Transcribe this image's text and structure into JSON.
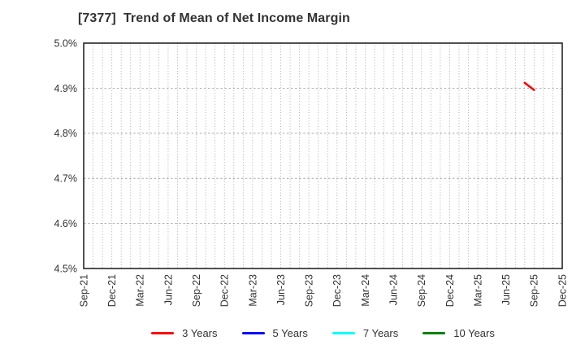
{
  "title": "[7377]  Trend of Mean of Net Income Margin",
  "colors": {
    "background": "#ffffff",
    "axis": "#262626",
    "grid": "#999999",
    "text": "#333333",
    "series_3y": "#ff0000",
    "series_5y": "#0000ff",
    "series_7y": "#00ffff",
    "series_10y": "#008000"
  },
  "chart_data": {
    "type": "line",
    "title": "[7377]  Trend of Mean of Net Income Margin",
    "xlabel": "",
    "ylabel": "",
    "x_unit": "month",
    "x_start": "Sep-21",
    "x_end": "Dec-25",
    "x_tick_every_months": 3,
    "x_tick_labels": [
      "Sep-21",
      "Dec-21",
      "Mar-22",
      "Jun-22",
      "Sep-22",
      "Dec-22",
      "Mar-23",
      "Jun-23",
      "Sep-23",
      "Dec-23",
      "Mar-24",
      "Jun-24",
      "Sep-24",
      "Dec-24",
      "Mar-25",
      "Jun-25",
      "Sep-25",
      "Dec-25"
    ],
    "ylim": [
      4.5,
      5.0
    ],
    "y_ticks": [
      5.0,
      4.9,
      4.8,
      4.7,
      4.6,
      4.5
    ],
    "y_tick_labels": [
      "5.0%",
      "4.9%",
      "4.8%",
      "4.7%",
      "4.6%",
      "4.5%"
    ],
    "grid": {
      "vertical": "monthly dotted",
      "horizontal": "dashed at inner y ticks"
    },
    "series": [
      {
        "name": "3 Years",
        "color": "#ff0000",
        "points": [
          {
            "x": "Aug-25",
            "y": 4.912
          },
          {
            "x": "Sep-25",
            "y": 4.896
          }
        ]
      },
      {
        "name": "5 Years",
        "color": "#0000ff",
        "points": []
      },
      {
        "name": "7 Years",
        "color": "#00ffff",
        "points": []
      },
      {
        "name": "10 Years",
        "color": "#008000",
        "points": []
      }
    ],
    "legend": {
      "position": "bottom",
      "entries": [
        {
          "label": "3 Years",
          "color": "#ff0000"
        },
        {
          "label": "5 Years",
          "color": "#0000ff"
        },
        {
          "label": "7 Years",
          "color": "#00ffff"
        },
        {
          "label": "10 Years",
          "color": "#008000"
        }
      ]
    }
  }
}
